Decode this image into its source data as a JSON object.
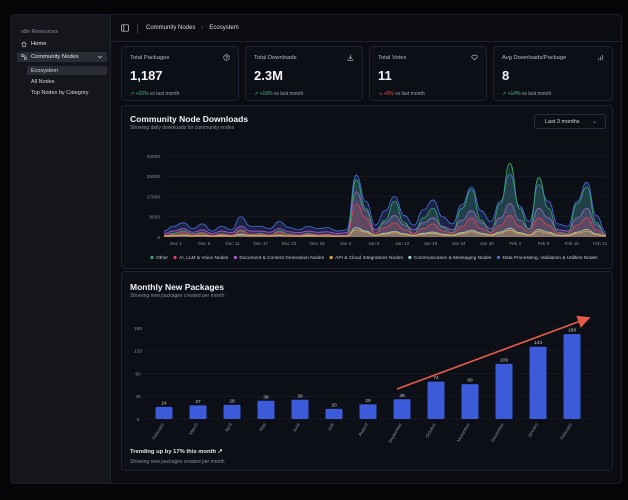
{
  "sidebar": {
    "title": "n8n Resources",
    "home": "Home",
    "community": "Community Nodes",
    "sub": [
      "Ecosystem",
      "All Nodes",
      "Top Nodes by Category"
    ]
  },
  "breadcrumb": {
    "parent": "Community Nodes",
    "current": "Ecosystem",
    "sep": "›"
  },
  "stats": [
    {
      "label": "Total Packages",
      "value": "1,187",
      "trend": "+20%",
      "trend_dir": "up",
      "suffix": "vs last month",
      "icon": "package-icon"
    },
    {
      "label": "Total Downloads",
      "value": "2.3M",
      "trend": "+19%",
      "trend_dir": "up",
      "suffix": "vs last month",
      "icon": "download-icon"
    },
    {
      "label": "Total Votes",
      "value": "11",
      "trend": "+0%",
      "trend_dir": "down",
      "suffix": "vs last month",
      "icon": "heart-icon"
    },
    {
      "label": "Avg Downloads/Package",
      "value": "8",
      "trend": "+14%",
      "trend_dir": "up",
      "suffix": "vs last month",
      "icon": "bar-chart-icon"
    }
  ],
  "downloads": {
    "title": "Community Node Downloads",
    "subtitle": "Showing daily downloads for community nodes",
    "range": "Last 3 months"
  },
  "monthly": {
    "title": "Monthly New Packages",
    "subtitle": "Showing new packages created per month",
    "footer_title": "Trending up by 17% this month",
    "footer_sub": "Showing new packages created per month"
  },
  "chart_data": [
    {
      "type": "area",
      "title": "Community Node Downloads",
      "y_ticks": [
        "34000",
        "25500",
        "17000",
        "8500",
        "0"
      ],
      "ylim": [
        0,
        34000
      ],
      "x_ticks": [
        "Dec 1",
        "Dec 6",
        "Dec 11",
        "Dec 17",
        "Dec 23",
        "Dec 29",
        "Jan 3",
        "Jan 8",
        "Jan 13",
        "Jan 18",
        "Jan 24",
        "Jan 30",
        "Feb 4",
        "Feb 9",
        "Feb 15",
        "Feb 21"
      ],
      "series": [
        {
          "name": "Other",
          "color": "#3aa86b",
          "values": [
            500,
            1500,
            2500,
            1200,
            1800,
            600,
            1400,
            700,
            3000,
            1000,
            1500,
            800,
            2500,
            1200,
            700,
            1500,
            900,
            1100,
            500,
            500,
            24000,
            12000,
            1500,
            7000,
            15000,
            6000,
            1500,
            8000,
            12000,
            4000,
            1800,
            12000,
            20000,
            7000,
            2000,
            14000,
            31000,
            12000,
            3000,
            25000,
            12000,
            2000,
            1500,
            14000,
            21000,
            6000,
            800
          ]
        },
        {
          "name": "AI, LLM & Voice Nodes",
          "color": "#e0435a",
          "values": [
            800,
            1000,
            1800,
            1000,
            1500,
            700,
            1200,
            800,
            2500,
            1200,
            1200,
            900,
            2000,
            1000,
            800,
            1200,
            900,
            1000,
            600,
            600,
            14000,
            8000,
            1500,
            4000,
            6000,
            3000,
            1500,
            3500,
            5500,
            2500,
            1500,
            4500,
            8000,
            3500,
            1800,
            5000,
            9000,
            4500,
            2000,
            8000,
            5000,
            1500,
            1200,
            5000,
            8000,
            3000,
            600
          ]
        },
        {
          "name": "Document & Content Generation Nodes",
          "color": "#b05ad8",
          "values": [
            1500,
            2500,
            3500,
            2000,
            3000,
            1500,
            2500,
            1800,
            4500,
            2500,
            2500,
            2000,
            3500,
            2200,
            1800,
            2500,
            2000,
            2200,
            1500,
            1800,
            19000,
            11000,
            3000,
            6000,
            9000,
            5000,
            3000,
            6000,
            8000,
            4500,
            3000,
            7000,
            11000,
            6000,
            3500,
            8000,
            14000,
            7000,
            3500,
            12000,
            8000,
            3000,
            2500,
            8000,
            12000,
            5000,
            1200
          ]
        },
        {
          "name": "API & Cloud Integrations Nodes",
          "color": "#e0a53a",
          "values": [
            300,
            500,
            700,
            400,
            600,
            300,
            500,
            300,
            900,
            500,
            500,
            400,
            700,
            400,
            300,
            500,
            400,
            400,
            300,
            300,
            3000,
            2000,
            600,
            1200,
            1800,
            1000,
            600,
            1200,
            1600,
            900,
            600,
            1400,
            2200,
            1200,
            700,
            1600,
            2800,
            1400,
            700,
            2400,
            1600,
            600,
            500,
            1600,
            2400,
            1000,
            300
          ]
        },
        {
          "name": "Communication & Messaging Nodes",
          "color": "#9fd0c8",
          "values": [
            400,
            600,
            900,
            500,
            800,
            400,
            700,
            400,
            1200,
            600,
            600,
            500,
            900,
            500,
            400,
            700,
            500,
            500,
            400,
            400,
            4000,
            2500,
            700,
            1600,
            2400,
            1300,
            700,
            1600,
            2100,
            1200,
            800,
            1800,
            2900,
            1600,
            900,
            2100,
            3700,
            1800,
            900,
            3200,
            2100,
            800,
            700,
            2100,
            3200,
            1300,
            400
          ]
        },
        {
          "name": "Data Processing, Validation & Utilities Nodes",
          "color": "#4a6fe0",
          "values": [
            2500,
            4500,
            6000,
            3500,
            5500,
            2500,
            4500,
            3000,
            8500,
            4500,
            4500,
            3500,
            6500,
            4000,
            3000,
            4500,
            3500,
            4000,
            2500,
            3000,
            26000,
            15000,
            5000,
            11000,
            17000,
            9000,
            5000,
            11500,
            15500,
            8500,
            5500,
            13500,
            21000,
            11000,
            6500,
            15000,
            26500,
            13000,
            6500,
            22000,
            15000,
            5500,
            4500,
            15000,
            23000,
            9000,
            2000
          ]
        }
      ]
    },
    {
      "type": "bar",
      "title": "Monthly New Packages",
      "categories": [
        "February",
        "March",
        "April",
        "May",
        "June",
        "July",
        "August",
        "September",
        "October",
        "November",
        "December",
        "January",
        "February"
      ],
      "values": [
        24,
        27,
        28,
        36,
        38,
        20,
        29,
        39,
        74,
        69,
        109,
        143,
        168
      ],
      "y_ticks": [
        "180",
        "135",
        "90",
        "45",
        "0"
      ],
      "ylim": [
        0,
        180
      ],
      "color": "#3b5bdb"
    }
  ]
}
